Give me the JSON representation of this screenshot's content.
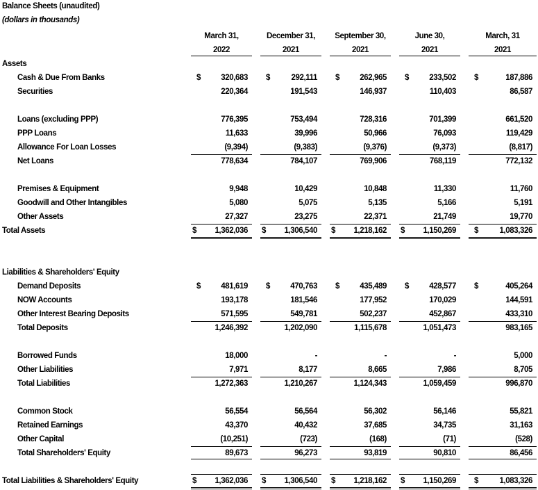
{
  "title": "Balance Sheets (unaudited)",
  "subtitle": "(dollars in thousands)",
  "columns": [
    {
      "line1": "March 31,",
      "line2": "2022"
    },
    {
      "line1": "December 31,",
      "line2": "2021"
    },
    {
      "line1": "September 30,",
      "line2": "2021"
    },
    {
      "line1": "June 30,",
      "line2": "2021"
    },
    {
      "line1": "March, 31",
      "line2": "2021"
    }
  ],
  "rows": [
    {
      "kind": "section",
      "label": "Assets"
    },
    {
      "kind": "item",
      "label": "Cash & Due From Banks",
      "currency": "$",
      "values": [
        "320,683",
        "292,111",
        "262,965",
        "233,502",
        "187,886"
      ]
    },
    {
      "kind": "item",
      "label": "Securities",
      "values": [
        "220,364",
        "191,543",
        "146,937",
        "110,403",
        "86,587"
      ]
    },
    {
      "kind": "blank"
    },
    {
      "kind": "item",
      "label": "Loans (excluding PPP)",
      "values": [
        "776,395",
        "753,494",
        "728,316",
        "701,399",
        "661,520"
      ]
    },
    {
      "kind": "item",
      "label": "PPP Loans",
      "values": [
        "11,633",
        "39,996",
        "50,966",
        "76,093",
        "119,429"
      ]
    },
    {
      "kind": "item",
      "label": "Allowance For Loan Losses",
      "values": [
        "(9,394)",
        "(9,383)",
        "(9,376)",
        "(9,373)",
        "(8,817)"
      ]
    },
    {
      "kind": "subtotal",
      "label": "Net Loans",
      "values": [
        "778,634",
        "784,107",
        "769,906",
        "768,119",
        "772,132"
      ]
    },
    {
      "kind": "blank"
    },
    {
      "kind": "item",
      "label": "Premises & Equipment",
      "values": [
        "9,948",
        "10,429",
        "10,848",
        "11,330",
        "11,760"
      ]
    },
    {
      "kind": "item",
      "label": "Goodwill and Other Intangibles",
      "values": [
        "5,080",
        "5,075",
        "5,135",
        "5,166",
        "5,191"
      ]
    },
    {
      "kind": "item",
      "label": "Other Assets",
      "values": [
        "27,327",
        "23,275",
        "22,371",
        "21,749",
        "19,770"
      ]
    },
    {
      "kind": "total",
      "label": "Total Assets",
      "currency": "$",
      "values": [
        "1,362,036",
        "1,306,540",
        "1,218,162",
        "1,150,269",
        "1,083,326"
      ]
    },
    {
      "kind": "blank"
    },
    {
      "kind": "blank"
    },
    {
      "kind": "section",
      "label": "Liabilities & Shareholders' Equity"
    },
    {
      "kind": "item",
      "label": "Demand Deposits",
      "currency": "$",
      "values": [
        "481,619",
        "470,763",
        "435,489",
        "428,577",
        "405,264"
      ]
    },
    {
      "kind": "item",
      "label": "NOW Accounts",
      "values": [
        "193,178",
        "181,546",
        "177,952",
        "170,029",
        "144,591"
      ]
    },
    {
      "kind": "item",
      "label": "Other Interest Bearing Deposits",
      "values": [
        "571,595",
        "549,781",
        "502,237",
        "452,867",
        "433,310"
      ]
    },
    {
      "kind": "subtotal",
      "label": "Total Deposits",
      "values": [
        "1,246,392",
        "1,202,090",
        "1,115,678",
        "1,051,473",
        "983,165"
      ]
    },
    {
      "kind": "blank"
    },
    {
      "kind": "item",
      "label": "Borrowed Funds",
      "values": [
        "18,000",
        "-",
        "-",
        "-",
        "5,000"
      ]
    },
    {
      "kind": "item",
      "label": "Other Liabilities",
      "values": [
        "7,971",
        "8,177",
        "8,665",
        "7,986",
        "8,705"
      ]
    },
    {
      "kind": "subtotal",
      "label": "Total Liabilities",
      "values": [
        "1,272,363",
        "1,210,267",
        "1,124,343",
        "1,059,459",
        "996,870"
      ]
    },
    {
      "kind": "blank"
    },
    {
      "kind": "item",
      "label": "Common Stock",
      "values": [
        "56,554",
        "56,564",
        "56,302",
        "56,146",
        "55,821"
      ]
    },
    {
      "kind": "item",
      "label": "Retained Earnings",
      "values": [
        "43,370",
        "40,432",
        "37,685",
        "34,735",
        "31,163"
      ]
    },
    {
      "kind": "item",
      "label": "Other Capital",
      "values": [
        "(10,251)",
        "(723)",
        "(168)",
        "(71)",
        "(528)"
      ]
    },
    {
      "kind": "subtotal-closed",
      "label": "Total Shareholders' Equity",
      "values": [
        "89,673",
        "96,273",
        "93,819",
        "90,810",
        "86,456"
      ]
    },
    {
      "kind": "blank"
    },
    {
      "kind": "grandtotal",
      "label": "Total Liabilities & Shareholders' Equity",
      "currency": "$",
      "values": [
        "1,362,036",
        "1,306,540",
        "1,218,162",
        "1,150,269",
        "1,083,326"
      ]
    }
  ]
}
